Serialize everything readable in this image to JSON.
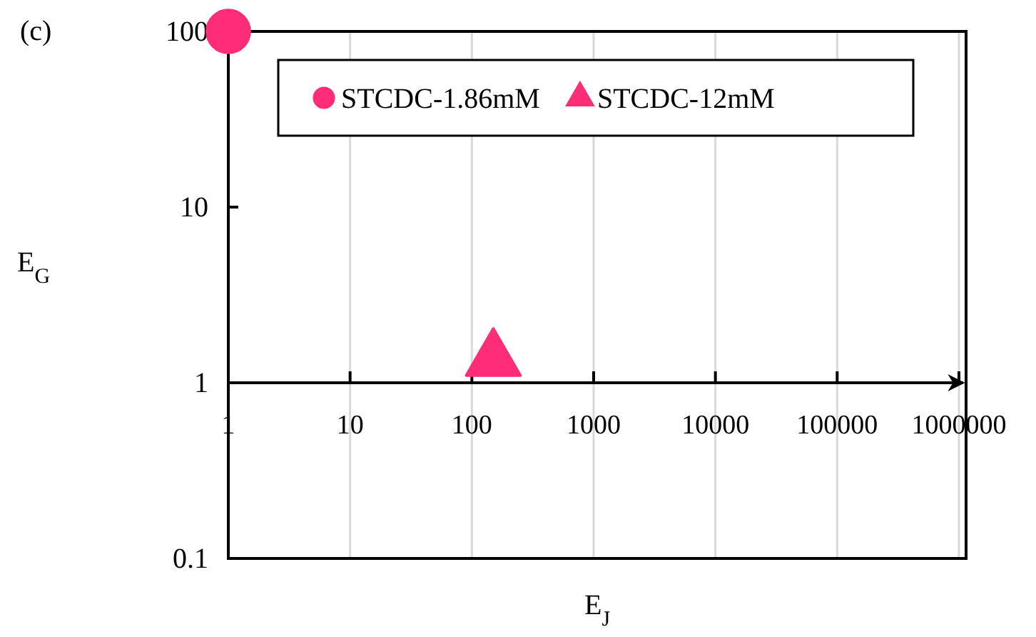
{
  "chart_data": {
    "type": "scatter",
    "title": "(c)",
    "xlabel": "E$_{J}$",
    "ylabel": "E$_{G}$",
    "log": "xy",
    "grid": "x",
    "legend": "top",
    "xlim": [
      1,
      1000000
    ],
    "xticks": [
      1,
      10,
      100,
      1000,
      10000,
      100000,
      1000000
    ],
    "ylim": [
      0.1,
      100
    ],
    "yticks": [
      0.1,
      1,
      10,
      100
    ],
    "series": [
      {
        "name": "STCDC-1.86mM",
        "color": "#ff2d78",
        "marker": "circle",
        "x": [
          1
        ],
        "values": [
          100
        ]
      },
      {
        "name": "STCDC-12mM",
        "color": "#ff2d78",
        "marker": "triangle",
        "x": [
          150
        ],
        "values": [
          1.35
        ]
      }
    ]
  }
}
